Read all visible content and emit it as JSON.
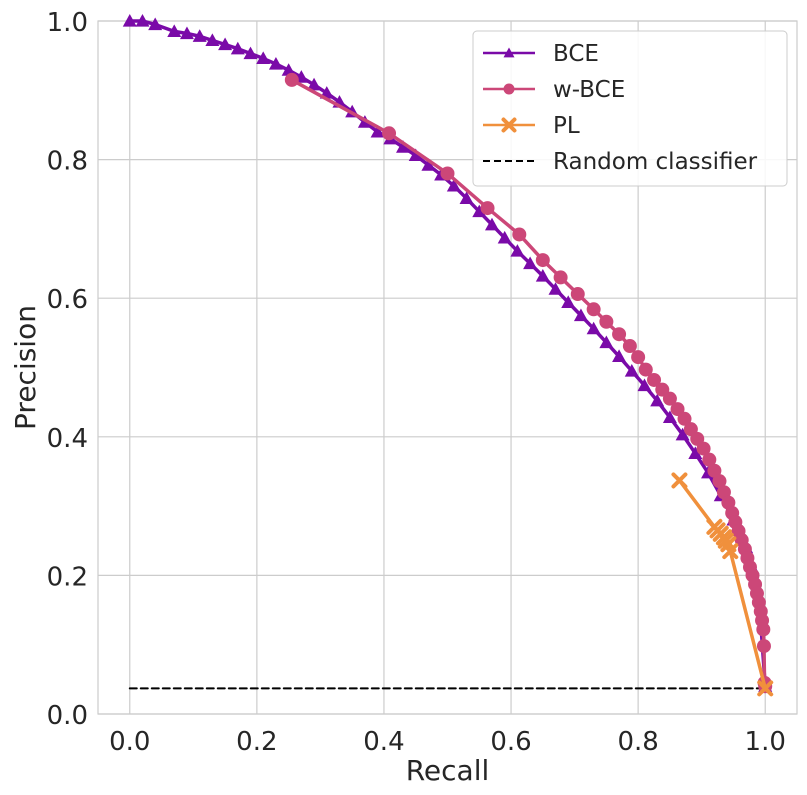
{
  "chart_data": {
    "type": "line",
    "title": "",
    "xlabel": "Recall",
    "ylabel": "Precision",
    "xlim": [
      -0.05,
      1.05
    ],
    "ylim": [
      0.0,
      1.0
    ],
    "xticks": [
      "0.0",
      "0.2",
      "0.4",
      "0.6",
      "0.8",
      "1.0"
    ],
    "xtick_values": [
      0.0,
      0.2,
      0.4,
      0.6,
      0.8,
      1.0
    ],
    "yticks": [
      "0.0",
      "0.2",
      "0.4",
      "0.6",
      "0.8",
      "1.0"
    ],
    "ytick_values": [
      0.0,
      0.2,
      0.4,
      0.6,
      0.8,
      1.0
    ],
    "grid": true,
    "legend_position": "top-right",
    "series": [
      {
        "name": "BCE",
        "color": "#7a0aa8",
        "marker": "triangle",
        "x": [
          0.0,
          0.02,
          0.04,
          0.07,
          0.09,
          0.11,
          0.13,
          0.15,
          0.17,
          0.19,
          0.21,
          0.23,
          0.25,
          0.27,
          0.29,
          0.31,
          0.33,
          0.35,
          0.37,
          0.39,
          0.41,
          0.43,
          0.45,
          0.47,
          0.49,
          0.51,
          0.53,
          0.55,
          0.57,
          0.59,
          0.61,
          0.63,
          0.65,
          0.67,
          0.69,
          0.71,
          0.73,
          0.75,
          0.77,
          0.79,
          0.81,
          0.83,
          0.85,
          0.87,
          0.89,
          0.91,
          0.93,
          0.95,
          0.97,
          0.98,
          0.99,
          1.0
        ],
        "y": [
          1.0,
          1.0,
          0.995,
          0.985,
          0.982,
          0.978,
          0.972,
          0.966,
          0.96,
          0.953,
          0.946,
          0.938,
          0.929,
          0.919,
          0.908,
          0.896,
          0.883,
          0.869,
          0.854,
          0.84,
          0.83,
          0.818,
          0.806,
          0.792,
          0.778,
          0.762,
          0.744,
          0.725,
          0.706,
          0.687,
          0.668,
          0.65,
          0.632,
          0.613,
          0.594,
          0.575,
          0.556,
          0.536,
          0.516,
          0.495,
          0.474,
          0.452,
          0.428,
          0.403,
          0.376,
          0.348,
          0.315,
          0.28,
          0.24,
          0.21,
          0.17,
          0.04
        ]
      },
      {
        "name": "w-BCE",
        "color": "#cc4778",
        "marker": "circle",
        "x": [
          0.255,
          0.408,
          0.5,
          0.563,
          0.613,
          0.65,
          0.678,
          0.705,
          0.73,
          0.75,
          0.77,
          0.787,
          0.8,
          0.812,
          0.825,
          0.838,
          0.85,
          0.862,
          0.873,
          0.883,
          0.893,
          0.903,
          0.912,
          0.92,
          0.928,
          0.935,
          0.942,
          0.948,
          0.953,
          0.958,
          0.963,
          0.968,
          0.972,
          0.976,
          0.98,
          0.984,
          0.987,
          0.99,
          0.993,
          0.995,
          0.997,
          0.998,
          0.999,
          1.0
        ],
        "y": [
          0.915,
          0.838,
          0.78,
          0.73,
          0.692,
          0.655,
          0.63,
          0.606,
          0.584,
          0.566,
          0.548,
          0.531,
          0.515,
          0.497,
          0.482,
          0.468,
          0.455,
          0.44,
          0.426,
          0.411,
          0.397,
          0.383,
          0.367,
          0.351,
          0.336,
          0.32,
          0.305,
          0.29,
          0.277,
          0.264,
          0.251,
          0.238,
          0.225,
          0.212,
          0.2,
          0.187,
          0.174,
          0.161,
          0.148,
          0.135,
          0.122,
          0.098,
          0.045,
          0.04
        ]
      },
      {
        "name": "PL",
        "color": "#f0903c",
        "marker": "x",
        "x": [
          0.865,
          0.92,
          0.925,
          0.93,
          0.935,
          0.938,
          0.942,
          0.945,
          1.0
        ],
        "y": [
          0.337,
          0.27,
          0.265,
          0.26,
          0.255,
          0.25,
          0.245,
          0.235,
          0.037
        ]
      },
      {
        "name": "Random classifier",
        "color": "#000000",
        "marker": "none",
        "linestyle": "dashed",
        "x": [
          0.0,
          1.0
        ],
        "y": [
          0.037,
          0.037
        ]
      }
    ]
  }
}
